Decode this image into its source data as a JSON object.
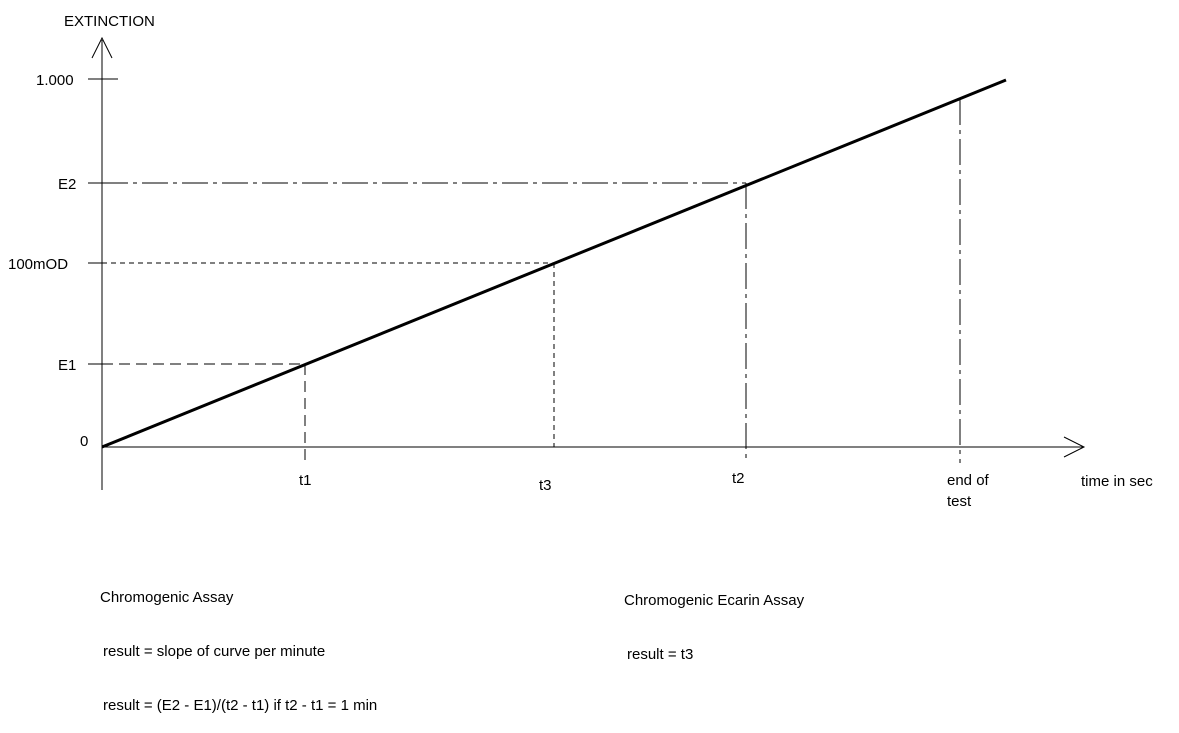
{
  "chart_data": {
    "type": "line",
    "y_axis_label": "EXTINCTION",
    "x_axis_label": "time in sec",
    "y_ticks": [
      {
        "id": "one",
        "label": "1.000"
      },
      {
        "id": "e2",
        "label": "E2"
      },
      {
        "id": "mod100",
        "label": "100mOD"
      },
      {
        "id": "e1",
        "label": "E1"
      },
      {
        "id": "zero",
        "label": "0"
      }
    ],
    "x_ticks": [
      {
        "id": "t1",
        "label": "t1"
      },
      {
        "id": "t3",
        "label": "t3"
      },
      {
        "id": "t2",
        "label": "t2"
      },
      {
        "id": "end",
        "label_lines": [
          "end of",
          "test"
        ]
      }
    ],
    "series": [
      {
        "points": [
          {
            "x": "0",
            "y": "0"
          },
          {
            "x": "t1",
            "y": "E1"
          },
          {
            "x": "t3",
            "y": "100mOD"
          },
          {
            "x": "t2",
            "y": "E2"
          }
        ]
      }
    ]
  },
  "notes": {
    "chromogenic_assay": {
      "title": "Chromogenic Assay",
      "line1": "result = slope of curve per minute",
      "line2": "result = (E2 - E1)/(t2 - t1) if t2 - t1 = 1 min"
    },
    "ecarin_assay": {
      "title": "Chromogenic Ecarin Assay",
      "line1": "result = t3"
    }
  }
}
